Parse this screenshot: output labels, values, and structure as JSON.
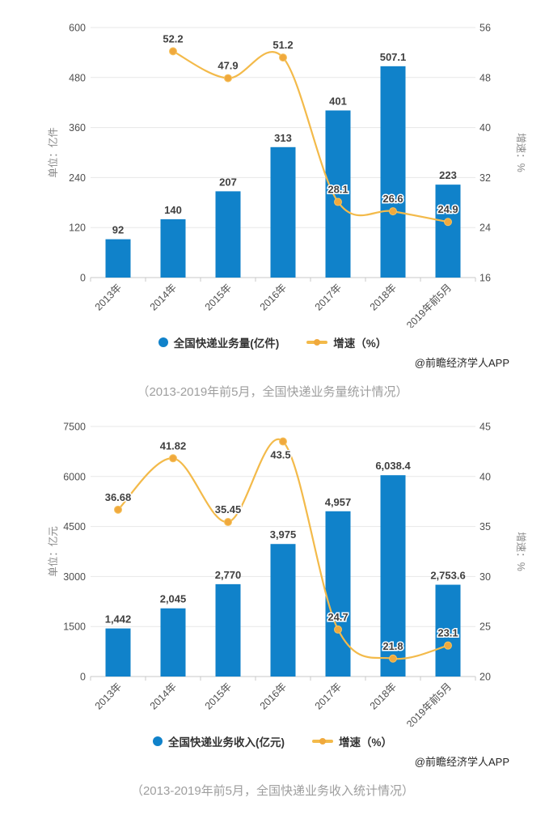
{
  "watermark": "@前瞻经济学人APP",
  "colors": {
    "bar": "#1082CA",
    "line": "#F3BA4A",
    "marker": "#F0A93D",
    "marker_edge": "#F6C35F",
    "grid": "#E7E7E7",
    "axis_line": "#C9C9C9",
    "tick_label": "#4F4F4F",
    "axis_title": "#8A8A8A",
    "data_label": "#404040",
    "legend_text": "#333333",
    "caption": "#9E9E9E",
    "watermark_text": "#262626"
  },
  "charts": [
    {
      "caption": "（2013-2019年前5月，全国快递业务量统计情况）",
      "legend": [
        {
          "type": "bar",
          "label": "全国快递业务量(亿件)"
        },
        {
          "type": "line",
          "label": "增速（%）"
        }
      ],
      "chart_data": {
        "type": "bar+line",
        "title": "",
        "categories": [
          "2013年",
          "2014年",
          "2015年",
          "2016年",
          "2017年",
          "2018年",
          "2019年前5月"
        ],
        "series": [
          {
            "name": "全国快递业务量(亿件)",
            "type": "bar",
            "axis": "left",
            "values": [
              92,
              140,
              207,
              313,
              401,
              507.1,
              223
            ],
            "labels": [
              "92",
              "140",
              "207",
              "313",
              "401",
              "507.1",
              "223"
            ]
          },
          {
            "name": "增速（%）",
            "type": "line",
            "axis": "right",
            "values": [
              null,
              52.2,
              47.9,
              51.2,
              28.1,
              26.6,
              24.9
            ],
            "labels": [
              "",
              "52.2",
              "47.9",
              "51.2",
              "28.1",
              "26.6",
              "24.9"
            ]
          }
        ],
        "left_axis": {
          "title": "单位：亿件",
          "min": 0,
          "max": 600,
          "ticks": [
            0,
            120,
            240,
            360,
            480,
            600
          ]
        },
        "right_axis": {
          "title": "增速：%",
          "min": 16,
          "max": 56,
          "ticks": [
            16,
            24,
            32,
            40,
            48,
            56
          ]
        },
        "grid": true,
        "legend_position": "bottom"
      }
    },
    {
      "caption": "（2013-2019年前5月，全国快递业务收入统计情况）",
      "legend": [
        {
          "type": "bar",
          "label": "全国快递业务收入(亿元)"
        },
        {
          "type": "line",
          "label": "增速（%）"
        }
      ],
      "chart_data": {
        "type": "bar+line",
        "title": "",
        "categories": [
          "2013年",
          "2014年",
          "2015年",
          "2016年",
          "2017年",
          "2018年",
          "2019年前5月"
        ],
        "series": [
          {
            "name": "全国快递业务收入(亿元)",
            "type": "bar",
            "axis": "left",
            "values": [
              1442,
              2045,
              2770,
              3975,
              4957,
              6038.4,
              2753.6
            ],
            "labels": [
              "1,442",
              "2,045",
              "2,770",
              "3,975",
              "4,957",
              "6,038.4",
              "2,753.6"
            ]
          },
          {
            "name": "增速（%）",
            "type": "line",
            "axis": "right",
            "values": [
              36.68,
              41.82,
              35.45,
              43.5,
              24.7,
              21.8,
              23.1
            ],
            "labels": [
              "36.68",
              "41.82",
              "35.45",
              "43.5",
              "24.7",
              "21.8",
              "23.1"
            ]
          }
        ],
        "left_axis": {
          "title": "单位：亿元",
          "min": 0,
          "max": 7500,
          "ticks": [
            0,
            1500,
            3000,
            4500,
            6000,
            7500
          ]
        },
        "right_axis": {
          "title": "增速：%",
          "min": 20,
          "max": 45,
          "ticks": [
            20,
            25,
            30,
            35,
            40,
            45
          ]
        },
        "grid": true,
        "legend_position": "bottom"
      }
    }
  ]
}
